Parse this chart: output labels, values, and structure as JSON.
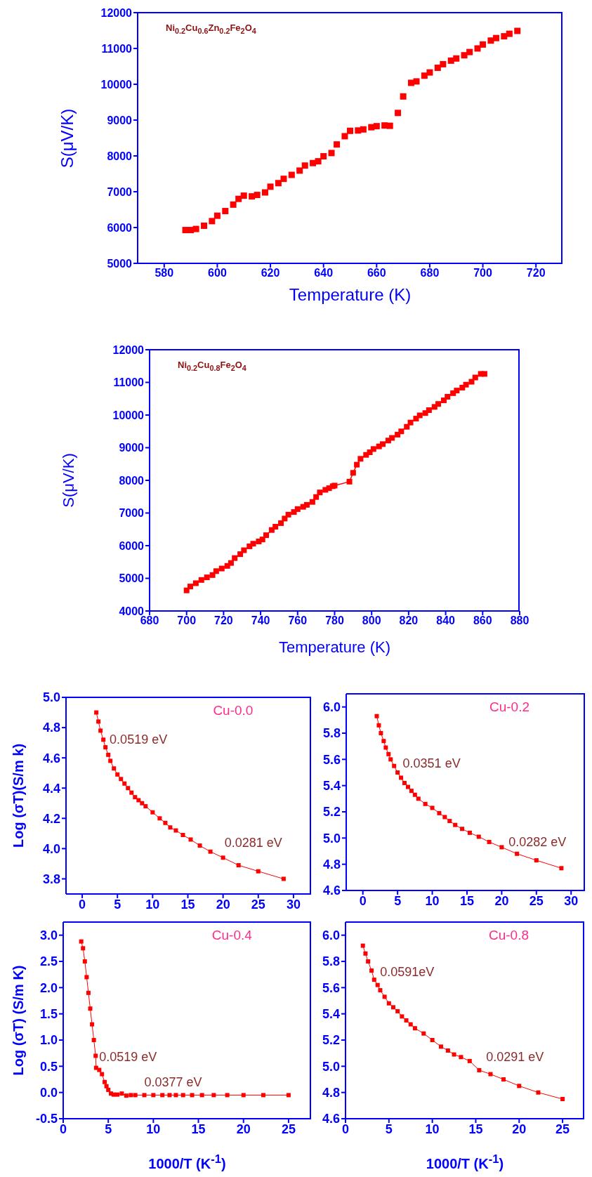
{
  "chart_data": [
    {
      "type": "scatter",
      "xlabel": "Temperature (K)",
      "ylabel": "S(μV/K)",
      "annotations": [
        "Ni$_{0.2}$Cu$_{0.6}$Zn$_{0.2}$Fe$_{2}$O$_{4}$"
      ],
      "color": "#ff0000",
      "marker": "square",
      "xlim": [
        570,
        730
      ],
      "xticks": [
        580,
        600,
        620,
        640,
        660,
        680,
        700,
        720
      ],
      "ylim": [
        5000,
        12000
      ],
      "yticks": [
        5000,
        6000,
        7000,
        8000,
        9000,
        10000,
        11000,
        12000
      ],
      "x": [
        588,
        590,
        592,
        595,
        598,
        600,
        603,
        606,
        608,
        610,
        613,
        615,
        618,
        620,
        623,
        625,
        628,
        631,
        633,
        636,
        638,
        640,
        643,
        645,
        648,
        650,
        653,
        655,
        658,
        660,
        663,
        665,
        668,
        670,
        673,
        675,
        678,
        680,
        683,
        685,
        688,
        690,
        693,
        695,
        698,
        700,
        703,
        705,
        708,
        710,
        713
      ],
      "values": [
        5930,
        5930,
        5960,
        6050,
        6180,
        6330,
        6460,
        6640,
        6800,
        6890,
        6870,
        6910,
        6980,
        7140,
        7240,
        7360,
        7470,
        7590,
        7730,
        7800,
        7850,
        7990,
        8080,
        8320,
        8550,
        8700,
        8710,
        8740,
        8800,
        8830,
        8850,
        8840,
        9200,
        9660,
        10040,
        10080,
        10240,
        10330,
        10460,
        10560,
        10660,
        10720,
        10810,
        10900,
        11000,
        11110,
        11220,
        11290,
        11340,
        11410,
        11490
      ]
    },
    {
      "type": "line",
      "xlabel": "Temperature (K)",
      "ylabel": "S(μV/K)",
      "annotations": [
        "Ni$_{0.2}$Cu$_{0.8}$Fe$_{2}$O$_{4}$"
      ],
      "color": "#ff0000",
      "marker": "square",
      "xlim": [
        680,
        880
      ],
      "xticks": [
        680,
        700,
        720,
        740,
        760,
        780,
        800,
        820,
        840,
        860,
        880
      ],
      "ylim": [
        4000,
        12000
      ],
      "yticks": [
        4000,
        5000,
        6000,
        7000,
        8000,
        9000,
        10000,
        11000,
        12000
      ],
      "x": [
        700,
        702,
        705,
        708,
        711,
        714,
        716,
        719,
        722,
        724,
        726,
        729,
        731,
        734,
        736,
        739,
        741,
        743,
        746,
        748,
        751,
        753,
        755,
        758,
        760,
        763,
        765,
        768,
        770,
        772,
        775,
        777,
        779,
        780,
        788,
        790,
        792,
        794,
        797,
        799,
        801,
        804,
        806,
        809,
        811,
        814,
        816,
        819,
        821,
        824,
        826,
        829,
        831,
        834,
        836,
        839,
        841,
        844,
        846,
        849,
        851,
        854,
        856,
        859,
        861
      ],
      "values": [
        4630,
        4750,
        4850,
        4950,
        5030,
        5100,
        5220,
        5300,
        5380,
        5470,
        5620,
        5740,
        5860,
        5980,
        6060,
        6130,
        6190,
        6320,
        6480,
        6580,
        6690,
        6830,
        6950,
        7030,
        7120,
        7190,
        7250,
        7340,
        7490,
        7630,
        7710,
        7760,
        7820,
        7840,
        7960,
        8230,
        8480,
        8660,
        8780,
        8860,
        8960,
        9040,
        9110,
        9220,
        9300,
        9400,
        9500,
        9640,
        9770,
        9890,
        9990,
        10060,
        10150,
        10250,
        10340,
        10450,
        10560,
        10670,
        10750,
        10840,
        10930,
        11020,
        11150,
        11260,
        11260
      ]
    },
    {
      "type": "line",
      "ylabel": "Log (σT)(S/m k)",
      "annotations": [
        "Cu-0.0",
        "0.0519 eV",
        "0.0281 eV"
      ],
      "color": "#ff0000",
      "marker": "square",
      "xlim": [
        -2.3,
        32.5
      ],
      "xticks": [
        0,
        5,
        10,
        15,
        20,
        25,
        30
      ],
      "ylim": [
        3.7,
        5.0
      ],
      "yticks": [
        {
          "value": 3.8,
          "label": "3.8"
        },
        {
          "value": 4,
          "label": "4.0"
        },
        {
          "value": 4.2,
          "label": "4.2"
        },
        {
          "value": 4.4,
          "label": "4.4"
        },
        {
          "value": 4.6,
          "label": "4.6"
        },
        {
          "value": 4.8,
          "label": "4.8"
        },
        {
          "value": 5,
          "label": "5.0"
        }
      ],
      "x": [
        2.0,
        2.3,
        2.6,
        3.0,
        3.3,
        3.7,
        4.0,
        4.5,
        5.0,
        5.5,
        6.0,
        6.5,
        7.0,
        7.5,
        8.0,
        8.5,
        9.0,
        10.0,
        11.0,
        11.8,
        12.5,
        13.3,
        14.3,
        15.4,
        16.7,
        18.2,
        20,
        22.2,
        25,
        28.6
      ],
      "values": [
        4.9,
        4.84,
        4.78,
        4.72,
        4.67,
        4.62,
        4.58,
        4.53,
        4.49,
        4.46,
        4.43,
        4.4,
        4.37,
        4.34,
        4.32,
        4.3,
        4.28,
        4.24,
        4.2,
        4.17,
        4.14,
        4.12,
        4.09,
        4.06,
        4.02,
        3.98,
        3.94,
        3.89,
        3.85,
        3.8
      ]
    },
    {
      "type": "line",
      "annotations": [
        "Cu-0.2",
        "0.0351 eV",
        "0.0282 eV"
      ],
      "color": "#ff0000",
      "marker": "square",
      "xlim": [
        -2.4,
        32
      ],
      "xticks": [
        0,
        5,
        10,
        15,
        20,
        25,
        30
      ],
      "ylim": [
        4.6,
        6.1
      ],
      "yticks": [
        {
          "value": 4.6,
          "label": "4.6"
        },
        {
          "value": 4.8,
          "label": "4.8"
        },
        {
          "value": 5,
          "label": "5.0"
        },
        {
          "value": 5.2,
          "label": "5.2"
        },
        {
          "value": 5.4,
          "label": "5.4"
        },
        {
          "value": 5.6,
          "label": "5.6"
        },
        {
          "value": 5.8,
          "label": "5.8"
        },
        {
          "value": 6,
          "label": "6.0"
        }
      ],
      "x": [
        2.0,
        2.3,
        2.6,
        3.0,
        3.3,
        3.7,
        4.0,
        4.5,
        5.0,
        5.5,
        6.0,
        6.5,
        7.0,
        7.5,
        8.0,
        9.0,
        10.0,
        11.0,
        11.8,
        12.5,
        13.3,
        14.3,
        15.4,
        16.7,
        18.2,
        20,
        22.2,
        25,
        28.6
      ],
      "values": [
        5.93,
        5.86,
        5.8,
        5.74,
        5.69,
        5.64,
        5.6,
        5.55,
        5.5,
        5.46,
        5.42,
        5.39,
        5.36,
        5.33,
        5.3,
        5.26,
        5.23,
        5.19,
        5.16,
        5.13,
        5.1,
        5.07,
        5.04,
        5.01,
        4.97,
        4.93,
        4.88,
        4.83,
        4.77
      ]
    },
    {
      "type": "line",
      "xlabel": "1000/T (K$^{-1}$)",
      "ylabel": "Log (σT) (S/m K)",
      "annotations": [
        "Cu-0.4",
        "0.0519 eV",
        "0.0377 eV"
      ],
      "color": "#ff0000",
      "marker": "square",
      "xlim": [
        0,
        27.5
      ],
      "xticks": [
        0,
        5,
        10,
        15,
        20,
        25
      ],
      "ylim": [
        -0.5,
        3.25
      ],
      "yticks": [
        {
          "value": -0.5,
          "label": "-0.5"
        },
        {
          "value": 0,
          "label": "0.0"
        },
        {
          "value": 0.5,
          "label": "0.5"
        },
        {
          "value": 1,
          "label": "1.0"
        },
        {
          "value": 1.5,
          "label": "1.5"
        },
        {
          "value": 2,
          "label": "2.0"
        },
        {
          "value": 2.5,
          "label": "2.5"
        },
        {
          "value": 3,
          "label": "3.0"
        }
      ],
      "x": [
        2.0,
        2.2,
        2.4,
        2.6,
        2.8,
        3.0,
        3.2,
        3.4,
        3.6,
        3.65,
        4.0,
        4.3,
        4.6,
        4.8,
        5.0,
        5.3,
        5.6,
        6.0,
        6.5,
        7.0,
        7.5,
        8.0,
        9.0,
        10.0,
        11.0,
        11.8,
        12.5,
        13.3,
        14.3,
        15.4,
        16.7,
        18.2,
        20,
        22.2,
        25
      ],
      "values": [
        2.88,
        2.75,
        2.5,
        2.2,
        1.9,
        1.6,
        1.3,
        1.0,
        0.7,
        0.47,
        0.43,
        0.35,
        0.2,
        0.12,
        0.05,
        -0.02,
        -0.04,
        -0.04,
        -0.02,
        -0.06,
        -0.05,
        -0.05,
        -0.05,
        -0.05,
        -0.05,
        -0.05,
        -0.05,
        -0.05,
        -0.05,
        -0.05,
        -0.05,
        -0.05,
        -0.05,
        -0.05,
        -0.05
      ]
    },
    {
      "type": "line",
      "xlabel": "1000/T (K$^{-1}$)",
      "annotations": [
        "Cu-0.8",
        "0.0591eV",
        "0.0291 eV"
      ],
      "color": "#ff0000",
      "marker": "square",
      "xlim": [
        0,
        27.5
      ],
      "xticks": [
        0,
        5,
        10,
        15,
        20,
        25
      ],
      "ylim": [
        4.6,
        6.1
      ],
      "yticks": [
        {
          "value": 4.6,
          "label": "4.6"
        },
        {
          "value": 4.8,
          "label": "4.8"
        },
        {
          "value": 5,
          "label": "5.0"
        },
        {
          "value": 5.2,
          "label": "5.2"
        },
        {
          "value": 5.4,
          "label": "5.4"
        },
        {
          "value": 5.6,
          "label": "5.6"
        },
        {
          "value": 5.8,
          "label": "5.8"
        },
        {
          "value": 6,
          "label": "6.0"
        }
      ],
      "x": [
        2.0,
        2.3,
        2.6,
        3.0,
        3.3,
        3.7,
        4.0,
        4.5,
        5.0,
        5.5,
        6.0,
        6.5,
        7.0,
        7.5,
        8.0,
        9.0,
        10.0,
        11.0,
        11.8,
        12.5,
        13.3,
        14.3,
        15.4,
        16.7,
        18.2,
        20,
        22.2,
        25
      ],
      "values": [
        5.92,
        5.86,
        5.8,
        5.73,
        5.66,
        5.62,
        5.58,
        5.53,
        5.48,
        5.45,
        5.42,
        5.38,
        5.35,
        5.32,
        5.29,
        5.25,
        5.2,
        5.15,
        5.12,
        5.09,
        5.07,
        5.04,
        4.97,
        4.94,
        4.9,
        4.85,
        4.8,
        4.75
      ]
    }
  ]
}
